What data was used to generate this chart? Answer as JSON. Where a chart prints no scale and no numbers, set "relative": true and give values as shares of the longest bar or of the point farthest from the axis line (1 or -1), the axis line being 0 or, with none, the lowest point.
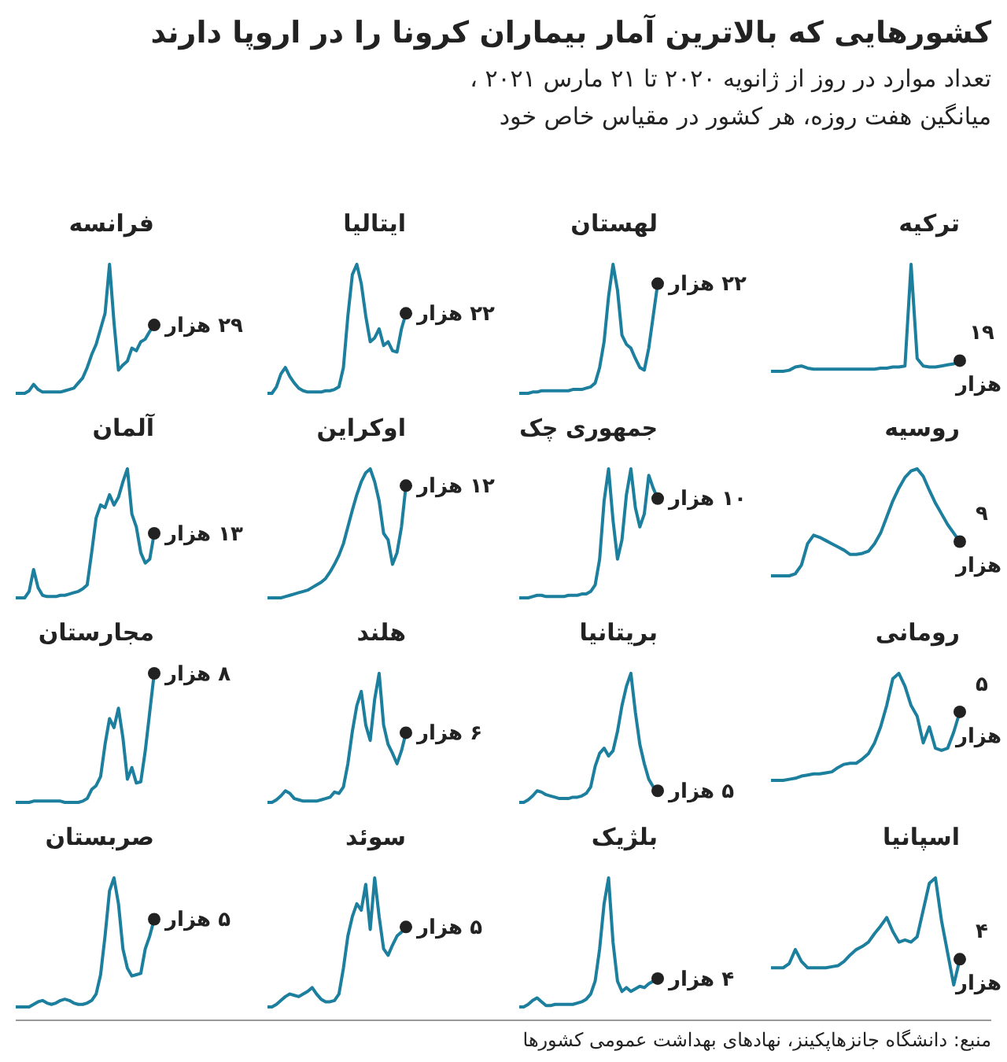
{
  "chart_data": [
    {
      "type": "other",
      "title": "کشورهایی که بالاترین آمار بیماران کرونا را در اروپا دارند",
      "subtitle": "تعداد موارد در روز از ژانویه ۲۰۲۰ تا ۲۱ مارس ۲۰۲۱ ،\nمیانگین هفت روزه، هر کشور در مقیاس خاص خود",
      "annotations": [
        "منبع: دانشگاه جانزهاپکینز، نهادهای بهداشت عمومی کشورها"
      ]
    },
    {
      "type": "line",
      "title": "فرانسه",
      "relative": true,
      "color": "#1d7f9e",
      "annotations": [
        "۲۹ هزار"
      ],
      "categories": [
        null,
        null,
        null,
        null,
        null,
        null,
        null,
        null,
        null,
        null,
        null,
        null,
        null,
        null,
        null,
        null,
        null,
        null,
        null,
        null,
        null,
        null,
        null,
        null,
        null,
        null,
        null,
        null,
        null,
        null,
        null,
        null
      ],
      "values": [
        0,
        0,
        0,
        0.02,
        0.07,
        0.03,
        0.01,
        0.01,
        0.01,
        0.01,
        0.01,
        0.02,
        0.03,
        0.04,
        0.08,
        0.12,
        0.2,
        0.3,
        0.38,
        0.5,
        0.62,
        1.0,
        0.55,
        0.18,
        0.22,
        0.25,
        0.35,
        0.33,
        0.4,
        0.42,
        0.48,
        0.53
      ]
    },
    {
      "type": "line",
      "title": "ایتالیا",
      "relative": true,
      "color": "#1d7f9e",
      "annotations": [
        "۲۲ هزار"
      ],
      "categories": [
        null,
        null,
        null,
        null,
        null,
        null,
        null,
        null,
        null,
        null,
        null,
        null,
        null,
        null,
        null,
        null,
        null,
        null,
        null,
        null,
        null,
        null,
        null,
        null,
        null,
        null,
        null,
        null,
        null,
        null,
        null,
        null
      ],
      "values": [
        0,
        0,
        0.05,
        0.15,
        0.2,
        0.13,
        0.08,
        0.04,
        0.02,
        0.01,
        0.01,
        0.01,
        0.01,
        0.02,
        0.02,
        0.03,
        0.05,
        0.2,
        0.6,
        0.92,
        1.0,
        0.85,
        0.6,
        0.4,
        0.43,
        0.5,
        0.37,
        0.4,
        0.33,
        0.32,
        0.5,
        0.62
      ]
    },
    {
      "type": "line",
      "title": "لهستان",
      "relative": true,
      "color": "#1d7f9e",
      "annotations": [
        "۲۲ هزار"
      ],
      "categories": [
        null,
        null,
        null,
        null,
        null,
        null,
        null,
        null,
        null,
        null,
        null,
        null,
        null,
        null,
        null,
        null,
        null,
        null,
        null,
        null,
        null,
        null,
        null,
        null,
        null,
        null,
        null,
        null,
        null,
        null,
        null,
        null
      ],
      "values": [
        0,
        0,
        0,
        0.01,
        0.01,
        0.02,
        0.02,
        0.02,
        0.02,
        0.02,
        0.02,
        0.02,
        0.03,
        0.03,
        0.03,
        0.04,
        0.05,
        0.08,
        0.2,
        0.4,
        0.75,
        1.0,
        0.8,
        0.45,
        0.38,
        0.35,
        0.27,
        0.2,
        0.18,
        0.35,
        0.6,
        0.85
      ]
    },
    {
      "type": "line",
      "title": "ترکیه",
      "relative": true,
      "color": "#1d7f9e",
      "annotations": [
        "۱۹ هزار"
      ],
      "categories": [
        null,
        null,
        null,
        null,
        null,
        null,
        null,
        null,
        null,
        null,
        null,
        null,
        null,
        null,
        null,
        null,
        null,
        null,
        null,
        null,
        null,
        null,
        null,
        null,
        null,
        null,
        null,
        null,
        null,
        null,
        null,
        null
      ],
      "values": [
        0,
        0,
        0,
        0.01,
        0.04,
        0.05,
        0.03,
        0.02,
        0.02,
        0.02,
        0.02,
        0.02,
        0.02,
        0.02,
        0.02,
        0.02,
        0.02,
        0.02,
        0.03,
        0.03,
        0.04,
        0.04,
        0.05,
        1.0,
        0.12,
        0.05,
        0.04,
        0.04,
        0.05,
        0.06,
        0.07,
        0.1
      ]
    },
    {
      "type": "line",
      "title": "آلمان",
      "relative": true,
      "color": "#1d7f9e",
      "annotations": [
        "۱۳ هزار"
      ],
      "categories": [
        null,
        null,
        null,
        null,
        null,
        null,
        null,
        null,
        null,
        null,
        null,
        null,
        null,
        null,
        null,
        null,
        null,
        null,
        null,
        null,
        null,
        null,
        null,
        null,
        null,
        null,
        null,
        null,
        null,
        null,
        null,
        null
      ],
      "values": [
        0,
        0,
        0,
        0.05,
        0.22,
        0.08,
        0.02,
        0.01,
        0.01,
        0.01,
        0.02,
        0.02,
        0.03,
        0.04,
        0.05,
        0.07,
        0.1,
        0.35,
        0.62,
        0.72,
        0.7,
        0.8,
        0.72,
        0.78,
        0.9,
        1.0,
        0.65,
        0.55,
        0.35,
        0.27,
        0.3,
        0.5
      ]
    },
    {
      "type": "line",
      "title": "اوکراین",
      "relative": true,
      "color": "#1d7f9e",
      "annotations": [
        "۱۲ هزار"
      ],
      "categories": [
        null,
        null,
        null,
        null,
        null,
        null,
        null,
        null,
        null,
        null,
        null,
        null,
        null,
        null,
        null,
        null,
        null,
        null,
        null,
        null,
        null,
        null,
        null,
        null,
        null,
        null,
        null,
        null,
        null,
        null,
        null,
        null
      ],
      "values": [
        0,
        0,
        0,
        0,
        0.01,
        0.02,
        0.03,
        0.04,
        0.05,
        0.06,
        0.08,
        0.1,
        0.12,
        0.15,
        0.2,
        0.26,
        0.33,
        0.42,
        0.55,
        0.68,
        0.8,
        0.9,
        0.97,
        1.0,
        0.9,
        0.75,
        0.5,
        0.45,
        0.26,
        0.35,
        0.55,
        0.87
      ]
    },
    {
      "type": "line",
      "title": "جمهوری چک",
      "relative": true,
      "color": "#1d7f9e",
      "annotations": [
        "۱۰ هزار"
      ],
      "categories": [
        null,
        null,
        null,
        null,
        null,
        null,
        null,
        null,
        null,
        null,
        null,
        null,
        null,
        null,
        null,
        null,
        null,
        null,
        null,
        null,
        null,
        null,
        null,
        null,
        null,
        null,
        null,
        null,
        null,
        null,
        null,
        null
      ],
      "values": [
        0,
        0,
        0,
        0.01,
        0.02,
        0.02,
        0.01,
        0.01,
        0.01,
        0.01,
        0.01,
        0.02,
        0.02,
        0.02,
        0.03,
        0.03,
        0.05,
        0.1,
        0.3,
        0.75,
        1.0,
        0.6,
        0.3,
        0.45,
        0.8,
        1.0,
        0.7,
        0.55,
        0.65,
        0.95,
        0.85,
        0.77
      ]
    },
    {
      "type": "line",
      "title": "روسیه",
      "relative": true,
      "color": "#1d7f9e",
      "annotations": [
        "۹ هزار"
      ],
      "categories": [
        null,
        null,
        null,
        null,
        null,
        null,
        null,
        null,
        null,
        null,
        null,
        null,
        null,
        null,
        null,
        null,
        null,
        null,
        null,
        null,
        null,
        null,
        null,
        null,
        null,
        null,
        null,
        null,
        null,
        null,
        null,
        null
      ],
      "values": [
        0,
        0,
        0,
        0,
        0.02,
        0.1,
        0.3,
        0.38,
        0.36,
        0.33,
        0.3,
        0.27,
        0.24,
        0.2,
        0.2,
        0.21,
        0.23,
        0.3,
        0.4,
        0.55,
        0.7,
        0.82,
        0.92,
        0.98,
        1.0,
        0.93,
        0.8,
        0.68,
        0.58,
        0.48,
        0.4,
        0.32
      ]
    },
    {
      "type": "line",
      "title": "مجارستان",
      "relative": true,
      "color": "#1d7f9e",
      "annotations": [
        "۸ هزار"
      ],
      "categories": [
        null,
        null,
        null,
        null,
        null,
        null,
        null,
        null,
        null,
        null,
        null,
        null,
        null,
        null,
        null,
        null,
        null,
        null,
        null,
        null,
        null,
        null,
        null,
        null,
        null,
        null,
        null,
        null,
        null,
        null,
        null,
        null
      ],
      "values": [
        0,
        0,
        0,
        0,
        0.01,
        0.01,
        0.01,
        0.01,
        0.01,
        0.01,
        0.01,
        0,
        0,
        0,
        0,
        0.01,
        0.03,
        0.1,
        0.13,
        0.2,
        0.45,
        0.65,
        0.58,
        0.73,
        0.5,
        0.18,
        0.27,
        0.15,
        0.16,
        0.4,
        0.7,
        1.0
      ]
    },
    {
      "type": "line",
      "title": "هلند",
      "relative": true,
      "color": "#1d7f9e",
      "annotations": [
        "۶ هزار"
      ],
      "categories": [
        null,
        null,
        null,
        null,
        null,
        null,
        null,
        null,
        null,
        null,
        null,
        null,
        null,
        null,
        null,
        null,
        null,
        null,
        null,
        null,
        null,
        null,
        null,
        null,
        null,
        null,
        null,
        null,
        null,
        null,
        null,
        null
      ],
      "values": [
        0,
        0,
        0.02,
        0.05,
        0.09,
        0.07,
        0.03,
        0.02,
        0.01,
        0.01,
        0.01,
        0.01,
        0.02,
        0.03,
        0.04,
        0.08,
        0.07,
        0.12,
        0.3,
        0.55,
        0.75,
        0.86,
        0.6,
        0.48,
        0.8,
        1.0,
        0.6,
        0.45,
        0.38,
        0.3,
        0.4,
        0.54
      ]
    },
    {
      "type": "line",
      "title": "بریتانیا",
      "relative": true,
      "color": "#1d7f9e",
      "annotations": [
        "۵ هزار"
      ],
      "categories": [
        null,
        null,
        null,
        null,
        null,
        null,
        null,
        null,
        null,
        null,
        null,
        null,
        null,
        null,
        null,
        null,
        null,
        null,
        null,
        null,
        null,
        null,
        null,
        null,
        null,
        null,
        null,
        null,
        null,
        null,
        null,
        null
      ],
      "values": [
        0,
        0,
        0.02,
        0.05,
        0.09,
        0.08,
        0.06,
        0.05,
        0.04,
        0.03,
        0.03,
        0.03,
        0.04,
        0.04,
        0.05,
        0.07,
        0.12,
        0.28,
        0.38,
        0.42,
        0.36,
        0.4,
        0.55,
        0.75,
        0.9,
        1.0,
        0.7,
        0.45,
        0.3,
        0.18,
        0.12,
        0.09
      ]
    },
    {
      "type": "line",
      "title": "رومانی",
      "relative": true,
      "color": "#1d7f9e",
      "annotations": [
        "۵ هزار"
      ],
      "categories": [
        null,
        null,
        null,
        null,
        null,
        null,
        null,
        null,
        null,
        null,
        null,
        null,
        null,
        null,
        null,
        null,
        null,
        null,
        null,
        null,
        null,
        null,
        null,
        null,
        null,
        null,
        null,
        null,
        null,
        null,
        null,
        null
      ],
      "values": [
        0,
        0,
        0,
        0.01,
        0.02,
        0.04,
        0.05,
        0.06,
        0.06,
        0.07,
        0.08,
        0.12,
        0.15,
        0.16,
        0.16,
        0.2,
        0.25,
        0.35,
        0.5,
        0.7,
        0.95,
        1.0,
        0.88,
        0.7,
        0.6,
        0.35,
        0.5,
        0.3,
        0.28,
        0.3,
        0.45,
        0.64
      ]
    },
    {
      "type": "line",
      "title": "صربستان",
      "relative": true,
      "color": "#1d7f9e",
      "annotations": [
        "۵ هزار"
      ],
      "categories": [
        null,
        null,
        null,
        null,
        null,
        null,
        null,
        null,
        null,
        null,
        null,
        null,
        null,
        null,
        null,
        null,
        null,
        null,
        null,
        null,
        null,
        null,
        null,
        null,
        null,
        null,
        null,
        null,
        null,
        null,
        null,
        null
      ],
      "values": [
        0,
        0,
        0,
        0,
        0.02,
        0.04,
        0.05,
        0.03,
        0.02,
        0.03,
        0.05,
        0.06,
        0.05,
        0.03,
        0.02,
        0.02,
        0.03,
        0.05,
        0.1,
        0.25,
        0.55,
        0.9,
        1.0,
        0.8,
        0.45,
        0.3,
        0.24,
        0.25,
        0.26,
        0.45,
        0.55,
        0.68
      ]
    },
    {
      "type": "line",
      "title": "سوئد",
      "relative": true,
      "color": "#1d7f9e",
      "annotations": [
        "۵ هزار"
      ],
      "categories": [
        null,
        null,
        null,
        null,
        null,
        null,
        null,
        null,
        null,
        null,
        null,
        null,
        null,
        null,
        null,
        null,
        null,
        null,
        null,
        null,
        null,
        null,
        null,
        null,
        null,
        null,
        null,
        null,
        null,
        null,
        null,
        null
      ],
      "values": [
        0,
        0,
        0.02,
        0.05,
        0.08,
        0.1,
        0.09,
        0.08,
        0.1,
        0.12,
        0.15,
        0.1,
        0.06,
        0.04,
        0.04,
        0.05,
        0.1,
        0.3,
        0.55,
        0.7,
        0.8,
        0.75,
        0.95,
        0.6,
        1.0,
        0.7,
        0.45,
        0.4,
        0.48,
        0.55,
        0.58,
        0.62
      ]
    },
    {
      "type": "line",
      "title": "بلژیک",
      "relative": true,
      "color": "#1d7f9e",
      "annotations": [
        "۴ هزار"
      ],
      "categories": [
        null,
        null,
        null,
        null,
        null,
        null,
        null,
        null,
        null,
        null,
        null,
        null,
        null,
        null,
        null,
        null,
        null,
        null,
        null,
        null,
        null,
        null,
        null,
        null,
        null,
        null,
        null,
        null,
        null,
        null,
        null,
        null
      ],
      "values": [
        0,
        0,
        0.02,
        0.05,
        0.07,
        0.04,
        0.01,
        0.01,
        0.02,
        0.02,
        0.02,
        0.02,
        0.02,
        0.03,
        0.04,
        0.06,
        0.1,
        0.2,
        0.45,
        0.8,
        1.0,
        0.5,
        0.2,
        0.12,
        0.15,
        0.12,
        0.14,
        0.16,
        0.15,
        0.18,
        0.2,
        0.22
      ]
    },
    {
      "type": "line",
      "title": "اسپانیا",
      "relative": true,
      "color": "#1d7f9e",
      "annotations": [
        "۴ هزار"
      ],
      "categories": [
        null,
        null,
        null,
        null,
        null,
        null,
        null,
        null,
        null,
        null,
        null,
        null,
        null,
        null,
        null,
        null,
        null,
        null,
        null,
        null,
        null,
        null,
        null,
        null,
        null,
        null,
        null,
        null,
        null,
        null,
        null,
        null
      ],
      "values": [
        0.16,
        0.16,
        0.16,
        0.2,
        0.33,
        0.22,
        0.16,
        0.16,
        0.16,
        0.16,
        0.17,
        0.18,
        0.22,
        0.28,
        0.33,
        0.36,
        0.4,
        0.48,
        0.55,
        0.63,
        0.5,
        0.4,
        0.42,
        0.4,
        0.45,
        0.7,
        0.95,
        1.0,
        0.6,
        0.3,
        0,
        0.24
      ]
    }
  ]
}
